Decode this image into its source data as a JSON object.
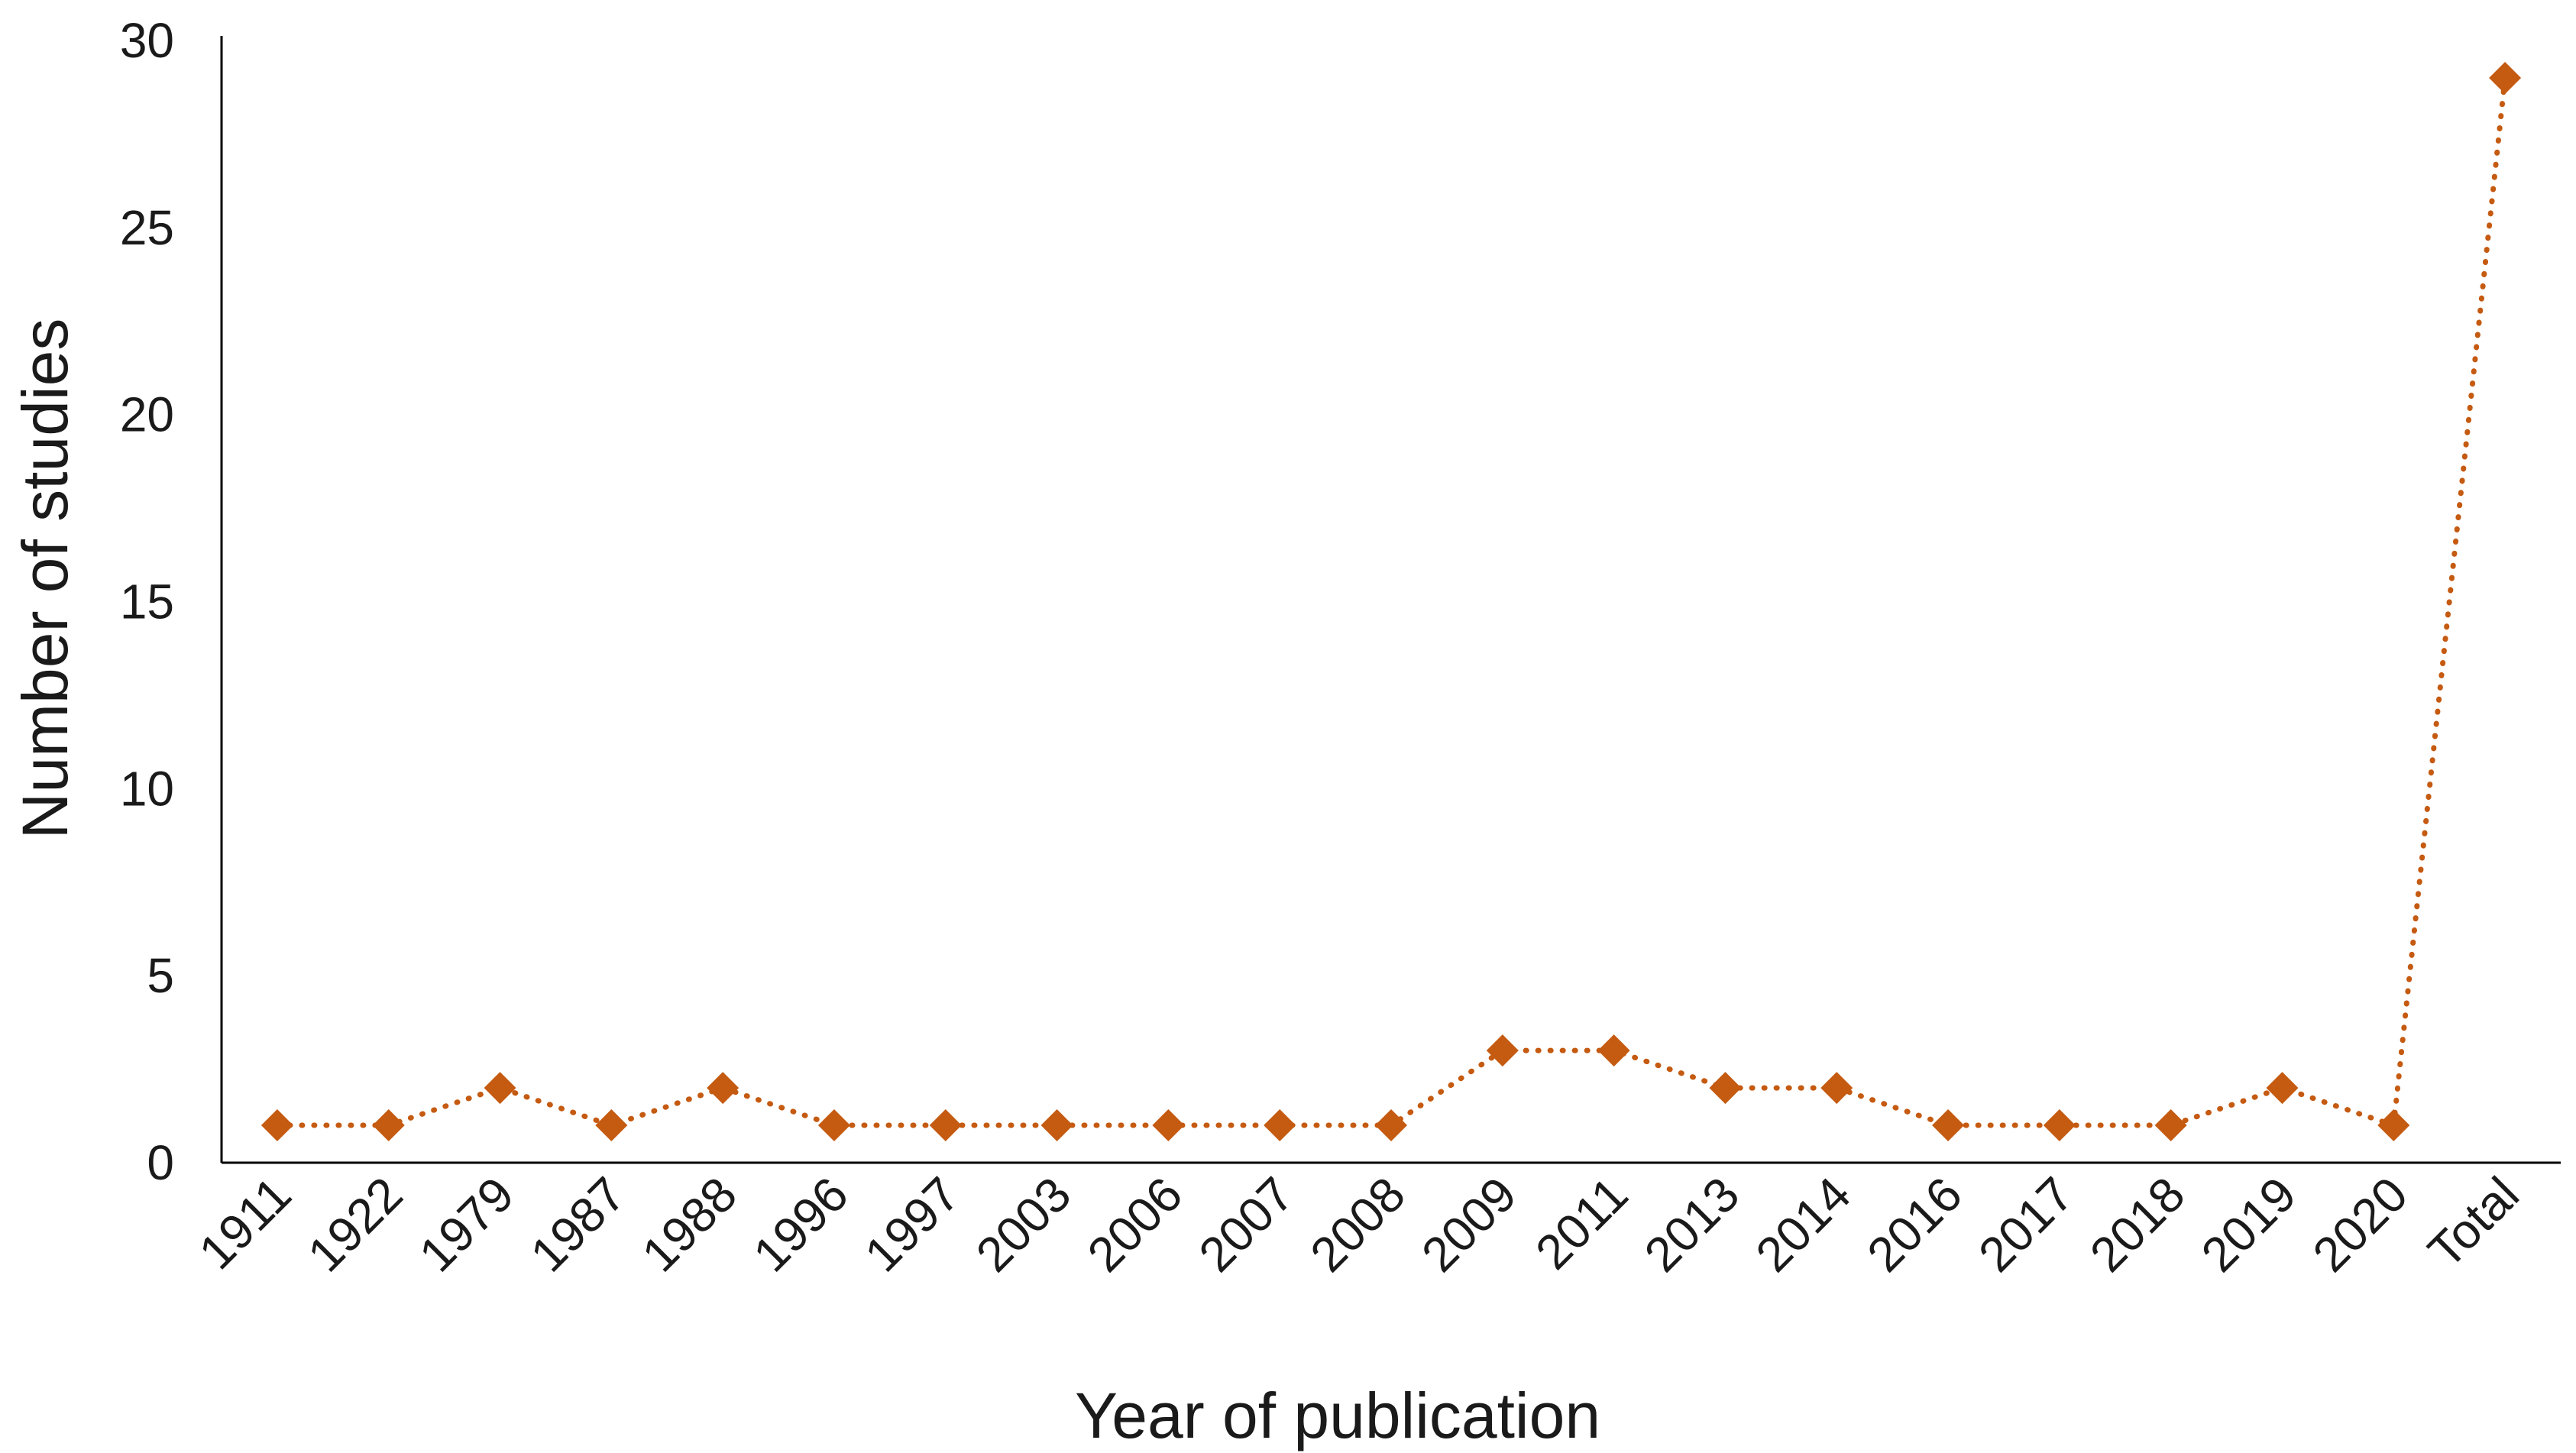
{
  "chart_data": {
    "type": "line",
    "title": "",
    "xlabel": "Year of publication",
    "ylabel": "Number of studies",
    "categories": [
      "1911",
      "1922",
      "1979",
      "1987",
      "1988",
      "1996",
      "1997",
      "2003",
      "2006",
      "2007",
      "2008",
      "2009",
      "2011",
      "2013",
      "2014",
      "2016",
      "2017",
      "2018",
      "2019",
      "2020",
      "Total"
    ],
    "series": [
      {
        "values": [
          1,
          1,
          2,
          1,
          2,
          1,
          1,
          1,
          1,
          1,
          1,
          3,
          3,
          2,
          2,
          1,
          1,
          1,
          2,
          1,
          29
        ],
        "color": "#c55a11",
        "marker": "diamond",
        "line_style": "dotted"
      }
    ],
    "ylim": [
      0,
      30
    ],
    "yticks": [
      0,
      5,
      10,
      15,
      20,
      25,
      30
    ],
    "grid": false,
    "legend": "none",
    "axis_color": "#000000"
  }
}
